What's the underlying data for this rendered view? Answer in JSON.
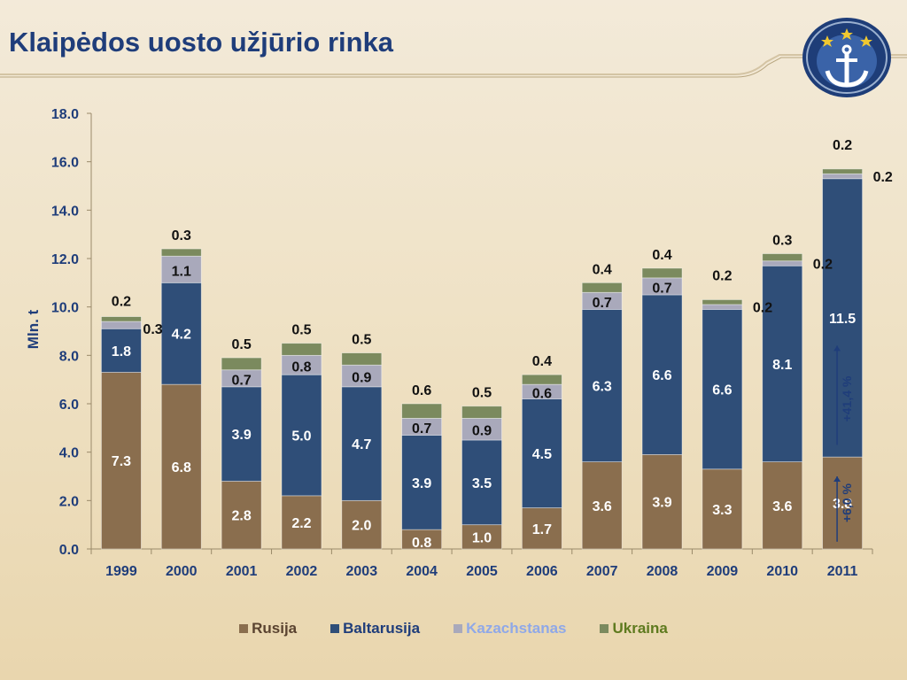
{
  "header": {
    "title": "Klaipėdos uosto užjūrio rinka"
  },
  "colors": {
    "title": "#1f3d7a",
    "Rusija": "#8a6e4e",
    "Baltarusija": "#2f4e78",
    "Kazachstanas": "#a9a9bb",
    "Ukraina": "#7b8a5e",
    "Rusija_text": "#5a4330",
    "Baltarusija_text": "#1f3d7a",
    "Kazachstanas_text": "#8fa8e8",
    "Ukraina_text": "#5e7a1e"
  },
  "logo": {
    "icon": "anchor-icon"
  },
  "chart_data": {
    "type": "bar",
    "stacked": true,
    "categories": [
      "1999",
      "2000",
      "2001",
      "2002",
      "2003",
      "2004",
      "2005",
      "2006",
      "2007",
      "2008",
      "2009",
      "2010",
      "2011"
    ],
    "series": [
      {
        "name": "Rusija",
        "values": [
          7.3,
          6.8,
          2.8,
          2.2,
          2.0,
          0.8,
          1.0,
          1.7,
          3.6,
          3.9,
          3.3,
          3.6,
          3.8
        ]
      },
      {
        "name": "Baltarusija",
        "values": [
          1.8,
          4.2,
          3.9,
          5.0,
          4.7,
          3.9,
          3.5,
          4.5,
          6.3,
          6.6,
          6.6,
          8.1,
          11.5
        ]
      },
      {
        "name": "Kazachstanas",
        "values": [
          0.3,
          1.1,
          0.7,
          0.8,
          0.9,
          0.7,
          0.9,
          0.6,
          0.7,
          0.7,
          0.2,
          0.2,
          0.2
        ]
      },
      {
        "name": "Ukraina",
        "values": [
          0.2,
          0.3,
          0.5,
          0.5,
          0.5,
          0.6,
          0.5,
          0.4,
          0.4,
          0.4,
          0.2,
          0.3,
          0.2
        ]
      }
    ],
    "value_labels": [
      [
        "7.3",
        "6.8",
        "2.8",
        "2.2",
        "2.0",
        "0.8",
        "1.0",
        "1.7",
        "3.6",
        "3.9",
        "3.3",
        "3.6",
        "3.8"
      ],
      [
        "1.8",
        "4.2",
        "3.9",
        "5.0",
        "4.7",
        "3.9",
        "3.5",
        "4.5",
        "6.3",
        "6.6",
        "6.6",
        "8.1",
        "11.5"
      ],
      [
        "0.3",
        "1.1",
        "0.7",
        "0.8",
        "0.9",
        "0.7",
        "0.9",
        "0.6",
        "0.7",
        "0.7",
        "0.2",
        "0.2",
        "0.2"
      ],
      [
        "0.2",
        "0.3",
        "0.5",
        "0.5",
        "0.5",
        "0.6",
        "0.5",
        "0.4",
        "0.4",
        "0.4",
        "0.2",
        "0.3",
        "0.2"
      ]
    ],
    "ylabel": "Mln. t",
    "xlabel": "",
    "ylim": [
      0,
      18
    ],
    "yticks": [
      "0.0",
      "2.0",
      "4.0",
      "6.0",
      "8.0",
      "10.0",
      "12.0",
      "14.0",
      "16.0",
      "18.0"
    ],
    "grid": false,
    "legend": "bottom",
    "annotations": [
      "+41,4 %",
      "+6,0 %"
    ]
  }
}
